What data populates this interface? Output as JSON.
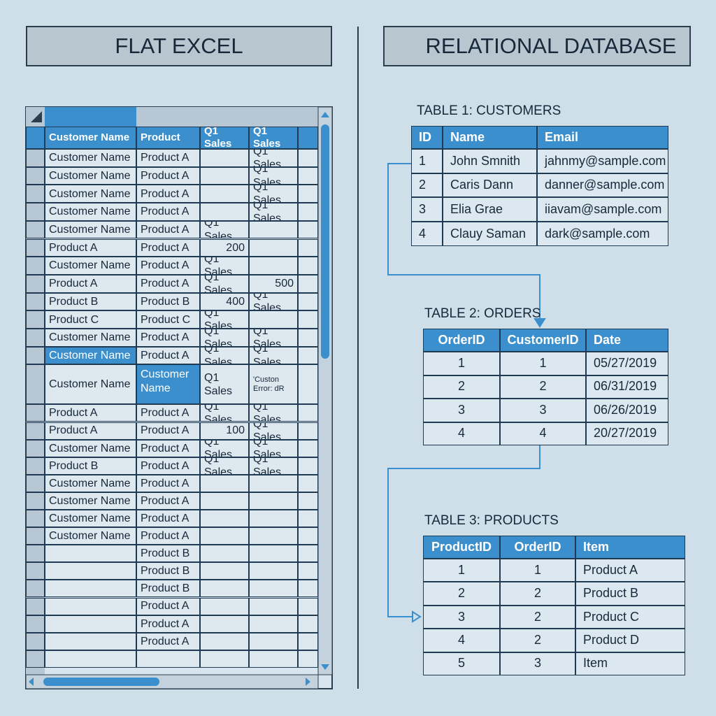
{
  "left": {
    "title": "FLAT EXCEL",
    "header": [
      "Customer Name",
      "Product",
      "Q1 Sales",
      "Q1 Sales"
    ],
    "rows": [
      [
        "Customer Name",
        "Product A",
        null,
        "Q1 Sales"
      ],
      [
        "Customer Name",
        "Product A",
        null,
        "Q1 Sales"
      ],
      [
        "Customer Name",
        "Product A",
        null,
        "Q1 Sales"
      ],
      [
        "Customer Name",
        "Product A",
        null,
        "Q1 Sales"
      ],
      [
        "Customer Name",
        "Product A",
        "Q1 Sales",
        null
      ],
      [
        "Product A",
        "Product A",
        "200",
        null
      ],
      [
        "Customer Name",
        "Product A",
        "Q1 Sales",
        null
      ],
      [
        "Product A",
        "Product A",
        "Q1 Sales",
        "500"
      ],
      [
        "Product B",
        "Product B",
        "400",
        "Q1 Sales"
      ],
      [
        "Product C",
        "Product C",
        "Q1 Sales",
        null
      ],
      [
        "Customer Name",
        "Product A",
        "Q1 Sales",
        "Q1 Sales"
      ],
      [
        "Customer Name",
        "Product A",
        "Q1 Sales",
        "Q1 Sales"
      ],
      [
        "Customer Name",
        "Customer Name",
        "Q1 Sales",
        "'Custon Error: dR"
      ],
      [
        "Product A",
        "Product A",
        "Q1 Sales",
        "Q1 Sales"
      ],
      [
        "Product A",
        "Product A",
        "100",
        "Q1 Sales"
      ],
      [
        "Customer Name",
        "Product A",
        "Q1 Sales",
        "Q1 Sales"
      ],
      [
        "Product B",
        "Product A",
        "Q1 Sales",
        "Q1 Sales"
      ],
      [
        "Customer Name",
        "Product A",
        null,
        null
      ],
      [
        "Customer Name",
        "Product A",
        null,
        null
      ],
      [
        "Customer Name",
        "Product A",
        null,
        null
      ],
      [
        "Customer Name",
        "Product A",
        null,
        null
      ],
      [
        null,
        "Product B",
        null,
        null
      ],
      [
        null,
        "Product B",
        null,
        null
      ],
      [
        null,
        "Product B",
        null,
        null
      ],
      [
        null,
        "Product A",
        null,
        null
      ],
      [
        null,
        "Product A",
        null,
        null
      ],
      [
        null,
        "Product A",
        null,
        null
      ],
      [
        null,
        null,
        null,
        null
      ]
    ]
  },
  "right": {
    "title": "RELATIONAL DATABASE",
    "tables": [
      {
        "caption": "TABLE 1: CUSTOMERS",
        "header": [
          "ID",
          "Name",
          "Email"
        ],
        "rows": [
          [
            "1",
            "John Smnith",
            "jahnmy@sample.com"
          ],
          [
            "2",
            "Caris Dann",
            "danner@sample.com"
          ],
          [
            "3",
            "Elia Grae",
            "iiavam@sample.com"
          ],
          [
            "4",
            "Clauy Saman",
            "dark@sample.com"
          ]
        ]
      },
      {
        "caption": "TABLE 2: ORDERS",
        "header": [
          "OrderID",
          "CustomerID",
          "Date"
        ],
        "rows": [
          [
            "1",
            "1",
            "05/27/2019"
          ],
          [
            "2",
            "2",
            "06/31/2019"
          ],
          [
            "3",
            "3",
            "06/26/2019"
          ],
          [
            "4",
            "4",
            "20/27/2019"
          ]
        ]
      },
      {
        "caption": "TABLE 3: PRODUCTS",
        "header": [
          "ProductID",
          "OrderID",
          "Item"
        ],
        "rows": [
          [
            "1",
            "1",
            "Product A"
          ],
          [
            "2",
            "2",
            "Product B"
          ],
          [
            "3",
            "2",
            "Product C"
          ],
          [
            "4",
            "2",
            "Product D"
          ],
          [
            "5",
            "3",
            "Item"
          ]
        ]
      }
    ]
  }
}
